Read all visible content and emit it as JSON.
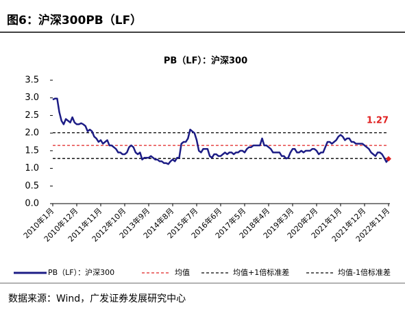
{
  "header": {
    "title": "图6：沪深300PB（LF）"
  },
  "chart_data": {
    "type": "line",
    "title": "PB（LF）：沪深300",
    "categories": [
      "2010年1月",
      null,
      null,
      null,
      null,
      null,
      null,
      null,
      null,
      null,
      null,
      "2010年12月",
      null,
      null,
      null,
      null,
      null,
      null,
      null,
      null,
      null,
      null,
      "2011年11月",
      null,
      null,
      null,
      null,
      null,
      null,
      null,
      null,
      null,
      null,
      "2012年10月",
      null,
      null,
      null,
      null,
      null,
      null,
      null,
      null,
      null,
      null,
      "2013年9月",
      null,
      null,
      null,
      null,
      null,
      null,
      null,
      null,
      null,
      null,
      "2014年8月",
      null,
      null,
      null,
      null,
      null,
      null,
      null,
      null,
      null,
      null,
      "2015年7月",
      null,
      null,
      null,
      null,
      null,
      null,
      null,
      null,
      null,
      null,
      "2016年6月",
      null,
      null,
      null,
      null,
      null,
      null,
      null,
      null,
      null,
      null,
      "2017年5月",
      null,
      null,
      null,
      null,
      null,
      null,
      null,
      null,
      null,
      null,
      "2018年4月",
      null,
      null,
      null,
      null,
      null,
      null,
      null,
      null,
      null,
      null,
      "2019年3月",
      null,
      null,
      null,
      null,
      null,
      null,
      null,
      null,
      null,
      null,
      "2020年2月",
      null,
      null,
      null,
      null,
      null,
      null,
      null,
      null,
      null,
      null,
      "2021年1月",
      null,
      null,
      null,
      null,
      null,
      null,
      null,
      null,
      null,
      null,
      "2021年12月",
      null,
      null,
      null,
      null,
      null,
      null,
      null,
      null,
      null,
      null,
      "2022年11月"
    ],
    "series": [
      {
        "name": "PB（LF）：沪深300",
        "color": "#1c1c85",
        "values": [
          2.95,
          2.98,
          2.98,
          2.6,
          2.35,
          2.25,
          2.4,
          2.35,
          2.3,
          2.45,
          2.3,
          2.25,
          2.25,
          2.28,
          2.25,
          2.2,
          2.05,
          2.1,
          2.05,
          1.9,
          1.85,
          1.75,
          1.8,
          1.7,
          1.75,
          1.8,
          1.65,
          1.65,
          1.6,
          1.55,
          1.45,
          1.45,
          1.4,
          1.4,
          1.45,
          1.6,
          1.65,
          1.6,
          1.45,
          1.4,
          1.45,
          1.25,
          1.3,
          1.3,
          1.3,
          1.35,
          1.3,
          1.25,
          1.25,
          1.2,
          1.2,
          1.15,
          1.15,
          1.12,
          1.2,
          1.25,
          1.2,
          1.3,
          1.3,
          1.7,
          1.75,
          1.75,
          1.85,
          2.1,
          2.05,
          2.0,
          1.8,
          1.5,
          1.45,
          1.55,
          1.55,
          1.55,
          1.35,
          1.3,
          1.4,
          1.4,
          1.35,
          1.35,
          1.4,
          1.45,
          1.4,
          1.45,
          1.45,
          1.4,
          1.45,
          1.45,
          1.5,
          1.5,
          1.45,
          1.55,
          1.6,
          1.6,
          1.65,
          1.65,
          1.65,
          1.65,
          1.85,
          1.65,
          1.65,
          1.6,
          1.55,
          1.45,
          1.45,
          1.45,
          1.45,
          1.35,
          1.35,
          1.28,
          1.3,
          1.45,
          1.55,
          1.55,
          1.45,
          1.45,
          1.5,
          1.45,
          1.5,
          1.5,
          1.5,
          1.55,
          1.55,
          1.5,
          1.4,
          1.45,
          1.45,
          1.6,
          1.75,
          1.75,
          1.7,
          1.75,
          1.8,
          1.9,
          1.95,
          1.9,
          1.8,
          1.85,
          1.85,
          1.75,
          1.75,
          1.7,
          1.7,
          1.7,
          1.7,
          1.65,
          1.6,
          1.55,
          1.45,
          1.4,
          1.35,
          1.45,
          1.45,
          1.4,
          1.3,
          1.18,
          1.27
        ]
      }
    ],
    "reference_lines": [
      {
        "name": "均值",
        "value": 1.65,
        "color": "#e02020"
      },
      {
        "name": "均值+1倍标准差",
        "value": 2.01,
        "color": "#000000"
      },
      {
        "name": "均值-1倍标准差",
        "value": 1.28,
        "color": "#000000"
      }
    ],
    "annotation": {
      "label": "1.27",
      "color": "#e02020"
    },
    "ylim": [
      0,
      3.5
    ],
    "yticks": [
      {
        "value": 0,
        "label": "0.0"
      },
      0.5,
      {
        "value": 1,
        "label": "1.0"
      },
      1.5,
      {
        "value": 2,
        "label": "2.0"
      },
      2.5,
      {
        "value": 3,
        "label": "3.0"
      },
      3.5
    ]
  },
  "source": "数据来源：Wind，广发证券发展研究中心"
}
